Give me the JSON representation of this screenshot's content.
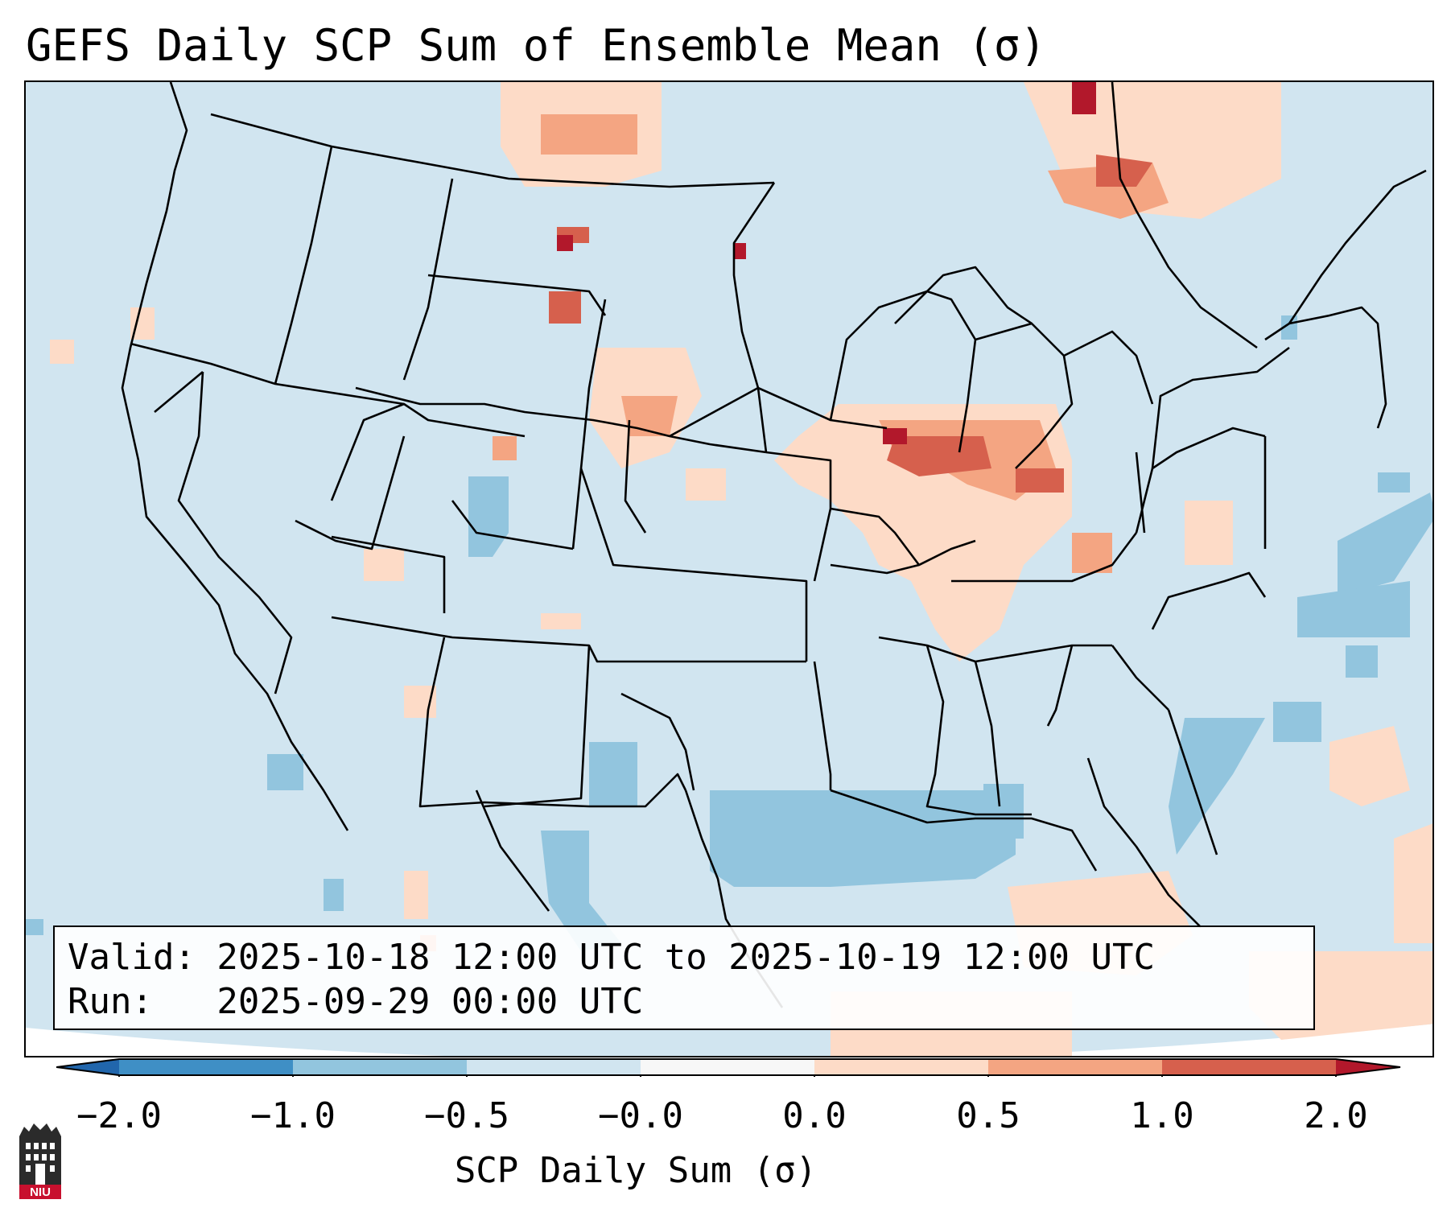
{
  "title": "GEFS Daily SCP Sum of Ensemble Mean (σ)",
  "info": {
    "valid_line": "Valid: 2025-10-18 12:00 UTC to 2025-10-19 12:00 UTC",
    "run_line": "Run:   2025-09-29 00:00 UTC"
  },
  "colorbar": {
    "label": "SCP Daily Sum (σ)",
    "ticks": [
      "−2.0",
      "−1.0",
      "−0.5",
      "−0.0",
      "0.0",
      "0.5",
      "1.0",
      "2.0"
    ],
    "colors": [
      "#3f8fc5",
      "#92c5de",
      "#d1e5f0",
      "#f7f7f7",
      "#fddbc7",
      "#f4a582",
      "#d6604d"
    ],
    "extend_low_color": "#2166ac",
    "extend_high_color": "#b2182b"
  },
  "map": {
    "background_color": "#d1e5f0",
    "outside_domain_color": "#ffffff",
    "coastline_color": "#000000"
  },
  "logo": {
    "text": "NIU",
    "icon": "university-building-icon",
    "color": "#c8102e"
  }
}
